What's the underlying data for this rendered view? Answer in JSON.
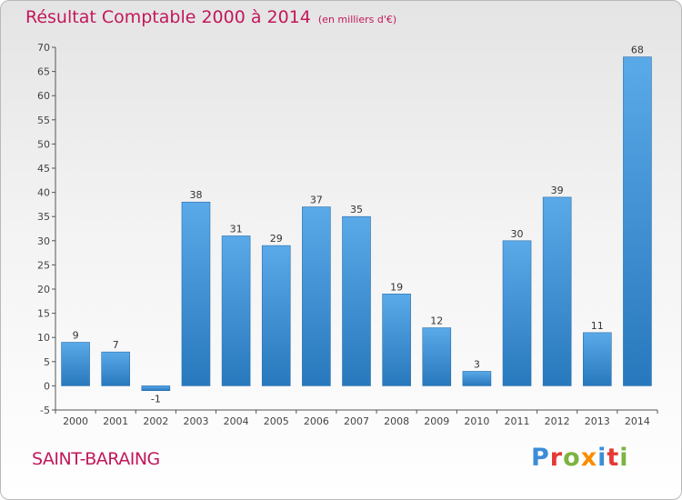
{
  "chart_data": {
    "type": "bar",
    "title": "Résultat Comptable 2000 à 2014",
    "subtitle": "(en milliers d'€)",
    "categories": [
      "2000",
      "2001",
      "2002",
      "2003",
      "2004",
      "2005",
      "2006",
      "2007",
      "2008",
      "2009",
      "2010",
      "2011",
      "2012",
      "2013",
      "2014"
    ],
    "values": [
      9,
      7,
      -1,
      38,
      31,
      29,
      37,
      35,
      19,
      12,
      3,
      30,
      39,
      11,
      68
    ],
    "ylim": [
      -5,
      70
    ],
    "yticks": [
      -5,
      0,
      5,
      10,
      15,
      20,
      25,
      30,
      35,
      40,
      45,
      50,
      55,
      60,
      65,
      70
    ],
    "xlabel": "",
    "ylabel": "",
    "grid": false,
    "bar_color": "#3f8fd2"
  },
  "footer": {
    "commune": "SAINT-BARAING",
    "logo": "Proxiti"
  }
}
